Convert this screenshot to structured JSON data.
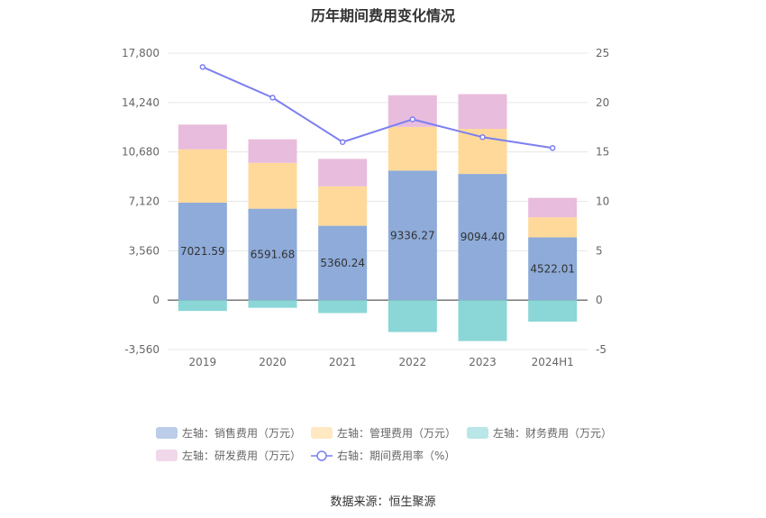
{
  "source": "数据来源：恒生聚源",
  "chart_data": {
    "type": "bar",
    "title": "历年期间费用变化情况",
    "categories": [
      "2019",
      "2020",
      "2021",
      "2022",
      "2023",
      "2024H1"
    ],
    "left_axis": {
      "min": -3560,
      "max": 17800,
      "ticks": [
        -3560,
        0,
        3560,
        7120,
        10680,
        14240,
        17800
      ],
      "tick_labels": [
        "-3,560",
        "0",
        "3,560",
        "7,120",
        "10,680",
        "14,240",
        "17,800"
      ]
    },
    "right_axis": {
      "min": -5,
      "max": 25,
      "ticks": [
        -5,
        0,
        5,
        10,
        15,
        20,
        25
      ],
      "tick_labels": [
        "-5",
        "0",
        "5",
        "10",
        "15",
        "20",
        "25"
      ]
    },
    "series": [
      {
        "name": "左轴：销售费用（万元）",
        "kind": "bar",
        "color": "#8eabd9",
        "values": [
          7021.59,
          6591.68,
          5360.24,
          9336.27,
          9094.4,
          4522.01
        ],
        "labels": [
          "7021.59",
          "6591.68",
          "5360.24",
          "9336.27",
          "9094.40",
          "4522.01"
        ]
      },
      {
        "name": "左轴：管理费用（万元）",
        "kind": "bar",
        "color": "#ffd99a",
        "values": [
          3850,
          3300,
          2840,
          3150,
          3250,
          1450
        ]
      },
      {
        "name": "左轴：财务费用（万元）",
        "kind": "bar",
        "color": "#8bd6d6",
        "values": [
          -780,
          -550,
          -930,
          -2300,
          -2950,
          -1550
        ]
      },
      {
        "name": "左轴：研发费用（万元）",
        "kind": "bar",
        "color": "#e8bcdc",
        "values": [
          1780,
          1700,
          1980,
          2280,
          2500,
          1400
        ]
      },
      {
        "name": "右轴：期间费用率（%）",
        "kind": "line",
        "color": "#7b7ff0",
        "values": [
          23.6,
          20.5,
          16.0,
          18.3,
          16.5,
          15.4
        ]
      }
    ],
    "legend_position": "bottom",
    "grid": true
  }
}
